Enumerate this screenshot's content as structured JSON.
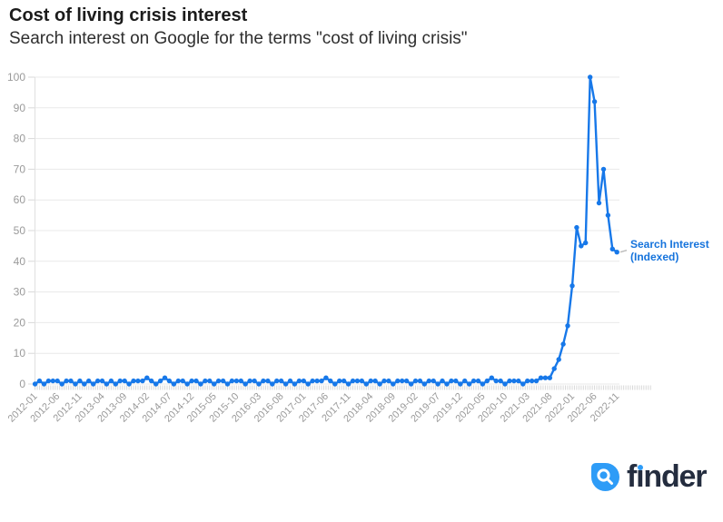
{
  "header": {
    "title": "Cost of living crisis interest",
    "subtitle": "Search interest on Google for the terms \"cost of living crisis\""
  },
  "series_label": {
    "line1": "Search Interest",
    "line2": "(Indexed)"
  },
  "footer": {
    "brand": "finder",
    "brand_parts": {
      "before_i": "f",
      "i_dotless": "ı",
      "after_i": "nder"
    },
    "icon": "magnifier-drop-icon"
  },
  "colors": {
    "line": "#1778e9",
    "series_label": "#1573dc",
    "grid": "#e9e9e9",
    "tick": "#d8d8d8",
    "axis_label": "#9a9a9a",
    "axis_line": "#e0e0e0",
    "connector": "#bbbbbb",
    "logo_blue": "#2e9cf7",
    "logo_navy": "#242d3f",
    "title_color": "#1c1c1c",
    "subtitle_color": "#2e2e2e"
  },
  "chart_data": {
    "type": "line",
    "title": "Cost of living crisis interest",
    "subtitle": "Search interest on Google for the terms \"cost of living crisis\"",
    "xlabel": "",
    "ylabel": "",
    "ylim": [
      0,
      100
    ],
    "yticks": [
      0,
      10,
      20,
      30,
      40,
      50,
      60,
      70,
      80,
      90,
      100
    ],
    "xtick_every": 5,
    "xtick_labels_shown": [
      "2012-01",
      "2012-06",
      "2012-11",
      "2013-04",
      "2013-09",
      "2014-02",
      "2014-07",
      "2014-12",
      "2015-05",
      "2015-10",
      "2016-03",
      "2016-08",
      "2017-01",
      "2017-06",
      "2017-11",
      "2018-04",
      "2018-09",
      "2019-02",
      "2019-07",
      "2019-12",
      "2020-05",
      "2020-10",
      "2021-03",
      "2021-08",
      "2022-01",
      "2022-06",
      "2022-11"
    ],
    "grid": "horizontal",
    "legend_position": "right-of-last-point",
    "x": [
      "2012-01",
      "2012-02",
      "2012-03",
      "2012-04",
      "2012-05",
      "2012-06",
      "2012-07",
      "2012-08",
      "2012-09",
      "2012-10",
      "2012-11",
      "2012-12",
      "2013-01",
      "2013-02",
      "2013-03",
      "2013-04",
      "2013-05",
      "2013-06",
      "2013-07",
      "2013-08",
      "2013-09",
      "2013-10",
      "2013-11",
      "2013-12",
      "2014-01",
      "2014-02",
      "2014-03",
      "2014-04",
      "2014-05",
      "2014-06",
      "2014-07",
      "2014-08",
      "2014-09",
      "2014-10",
      "2014-11",
      "2014-12",
      "2015-01",
      "2015-02",
      "2015-03",
      "2015-04",
      "2015-05",
      "2015-06",
      "2015-07",
      "2015-08",
      "2015-09",
      "2015-10",
      "2015-11",
      "2015-12",
      "2016-01",
      "2016-02",
      "2016-03",
      "2016-04",
      "2016-05",
      "2016-06",
      "2016-07",
      "2016-08",
      "2016-09",
      "2016-10",
      "2016-11",
      "2016-12",
      "2017-01",
      "2017-02",
      "2017-03",
      "2017-04",
      "2017-05",
      "2017-06",
      "2017-07",
      "2017-08",
      "2017-09",
      "2017-10",
      "2017-11",
      "2017-12",
      "2018-01",
      "2018-02",
      "2018-03",
      "2018-04",
      "2018-05",
      "2018-06",
      "2018-07",
      "2018-08",
      "2018-09",
      "2018-10",
      "2018-11",
      "2018-12",
      "2019-01",
      "2019-02",
      "2019-03",
      "2019-04",
      "2019-05",
      "2019-06",
      "2019-07",
      "2019-08",
      "2019-09",
      "2019-10",
      "2019-11",
      "2019-12",
      "2020-01",
      "2020-02",
      "2020-03",
      "2020-04",
      "2020-05",
      "2020-06",
      "2020-07",
      "2020-08",
      "2020-09",
      "2020-10",
      "2020-11",
      "2020-12",
      "2021-01",
      "2021-02",
      "2021-03",
      "2021-04",
      "2021-05",
      "2021-06",
      "2021-07",
      "2021-08",
      "2021-09",
      "2021-10",
      "2021-11",
      "2021-12",
      "2022-01",
      "2022-02",
      "2022-03",
      "2022-04",
      "2022-05",
      "2022-06",
      "2022-07",
      "2022-08",
      "2022-09",
      "2022-10",
      "2022-11"
    ],
    "series": [
      {
        "name": "Search Interest (Indexed)",
        "values": [
          0,
          1,
          0,
          1,
          1,
          1,
          0,
          1,
          1,
          0,
          1,
          0,
          1,
          0,
          1,
          1,
          0,
          1,
          0,
          1,
          1,
          0,
          1,
          1,
          1,
          2,
          1,
          0,
          1,
          2,
          1,
          0,
          1,
          1,
          0,
          1,
          1,
          0,
          1,
          1,
          0,
          1,
          1,
          0,
          1,
          1,
          1,
          0,
          1,
          1,
          0,
          1,
          1,
          0,
          1,
          1,
          0,
          1,
          0,
          1,
          1,
          0,
          1,
          1,
          1,
          2,
          1,
          0,
          1,
          1,
          0,
          1,
          1,
          1,
          0,
          1,
          1,
          0,
          1,
          1,
          0,
          1,
          1,
          1,
          0,
          1,
          1,
          0,
          1,
          1,
          0,
          1,
          0,
          1,
          1,
          0,
          1,
          0,
          1,
          1,
          0,
          1,
          2,
          1,
          1,
          0,
          1,
          1,
          1,
          0,
          1,
          1,
          1,
          2,
          2,
          2,
          5,
          8,
          13,
          19,
          32,
          51,
          45,
          46,
          100,
          92,
          59,
          70,
          55,
          44,
          43
        ]
      }
    ]
  }
}
